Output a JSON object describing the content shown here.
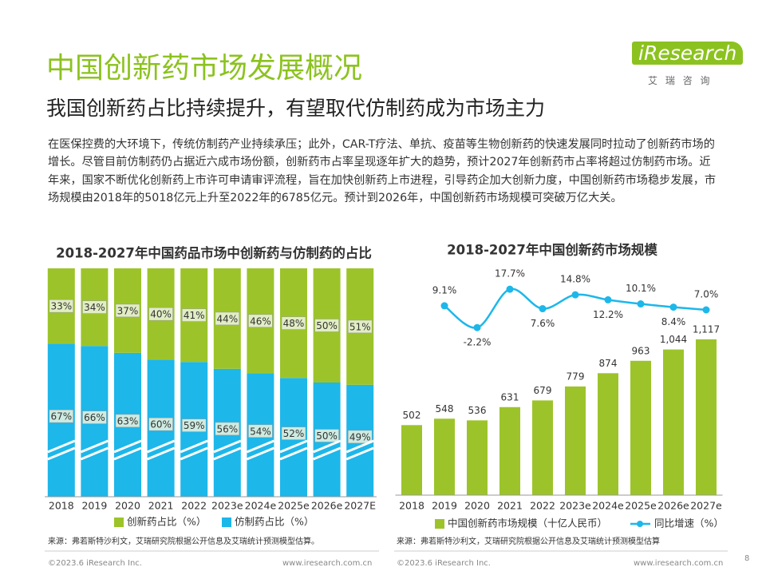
{
  "header": {
    "title": "中国创新药市场发展概况",
    "subtitle": "我国创新药占比持续提升，有望取代仿制药成为市场主力",
    "logo": "iResearch",
    "logo_sub": "艾 瑞 咨 询"
  },
  "body": {
    "text": "在医保控费的大环境下，传统仿制药产业持续承压；此外，CAR-T疗法、单抗、疫苗等生物创新药的快速发展同时拉动了创新药市场的增长。尽管目前仿制药仍占据近六成市场份额，创新药市占率呈现逐年扩大的趋势，预计2027年创新药市占率将超过仿制药市场。近年来，国家不断优化创新药上市许可申请审评流程，旨在加快创新药上市进程，引导药企加大创新力度，中国创新药市场稳步发展，市场规模由2018年的5018亿元上升至2022年的6785亿元。预计到2026年，中国创新药市场规模可突破万亿大关。"
  },
  "chart_data": [
    {
      "type": "stacked_bar",
      "title": "2018-2027年中国药品市场中创新药与仿制药的占比",
      "categories": [
        "2018",
        "2019",
        "2020",
        "2021",
        "2022",
        "2023e",
        "2024e",
        "2025e",
        "2026e",
        "2027E"
      ],
      "series": [
        {
          "name": "创新药占比（%）",
          "color": "#9cc42a",
          "values": [
            33,
            34,
            37,
            40,
            41,
            44,
            46,
            48,
            50,
            51
          ],
          "value_labels": [
            "33%",
            "34%",
            "37%",
            "40%",
            "41%",
            "44%",
            "46%",
            "48%",
            "50%",
            "51%"
          ]
        },
        {
          "name": "仿制药占比（%）",
          "color": "#1db7ea",
          "values": [
            67,
            66,
            63,
            60,
            59,
            56,
            54,
            52,
            50,
            49
          ],
          "value_labels": [
            "67%",
            "66%",
            "63%",
            "60%",
            "59%",
            "56%",
            "54%",
            "52%",
            "50%",
            "49%"
          ]
        }
      ],
      "ylim": [
        0,
        100
      ],
      "legend": "bottom"
    },
    {
      "type": "bar_line",
      "title": "2018-2027年中国创新药市场规模",
      "categories": [
        "2018",
        "2019",
        "2020",
        "2021",
        "2022",
        "2023e",
        "2024e",
        "2025e",
        "2026e",
        "2027e"
      ],
      "series": [
        {
          "name": "中国创新药市场规模（十亿人民币）",
          "color": "#9cc42a",
          "values": [
            502,
            548,
            536,
            631,
            679,
            779,
            874,
            963,
            1044,
            1117
          ],
          "value_labels": [
            "502",
            "548",
            "536",
            "631",
            "679",
            "779",
            "874",
            "963",
            "1,044",
            "1,117"
          ]
        },
        {
          "name": "同比增速（%）",
          "color": "#1db7ea",
          "axis": "y2",
          "values": [
            null,
            9.1,
            -2.2,
            17.7,
            7.6,
            14.8,
            12.2,
            10.1,
            8.4,
            7.0
          ],
          "value_labels": [
            null,
            "9.1%",
            "-2.2%",
            "17.7%",
            "7.6%",
            "14.8%",
            "12.2%",
            "10.1%",
            "8.4%",
            "7.0%"
          ]
        }
      ],
      "ylim": [
        0,
        1660
      ],
      "y2lim": [
        -89,
        31
      ],
      "legend": "bottom"
    }
  ],
  "sources": [
    "来源：弗若斯特沙利文，艾瑞研究院根据公开信息及艾瑞统计预测模型估算。",
    "来源：弗若斯特沙利文，艾瑞研究院根据公开信息及艾瑞统计预测模型估算"
  ],
  "footer": {
    "left_copyright": "©2023.6 iResearch Inc.",
    "left_url": "www.iresearch.com.cn",
    "right_copyright": "©2023.6 iResearch Inc.",
    "right_url": "www.iresearch.com.cn",
    "page": "8"
  }
}
